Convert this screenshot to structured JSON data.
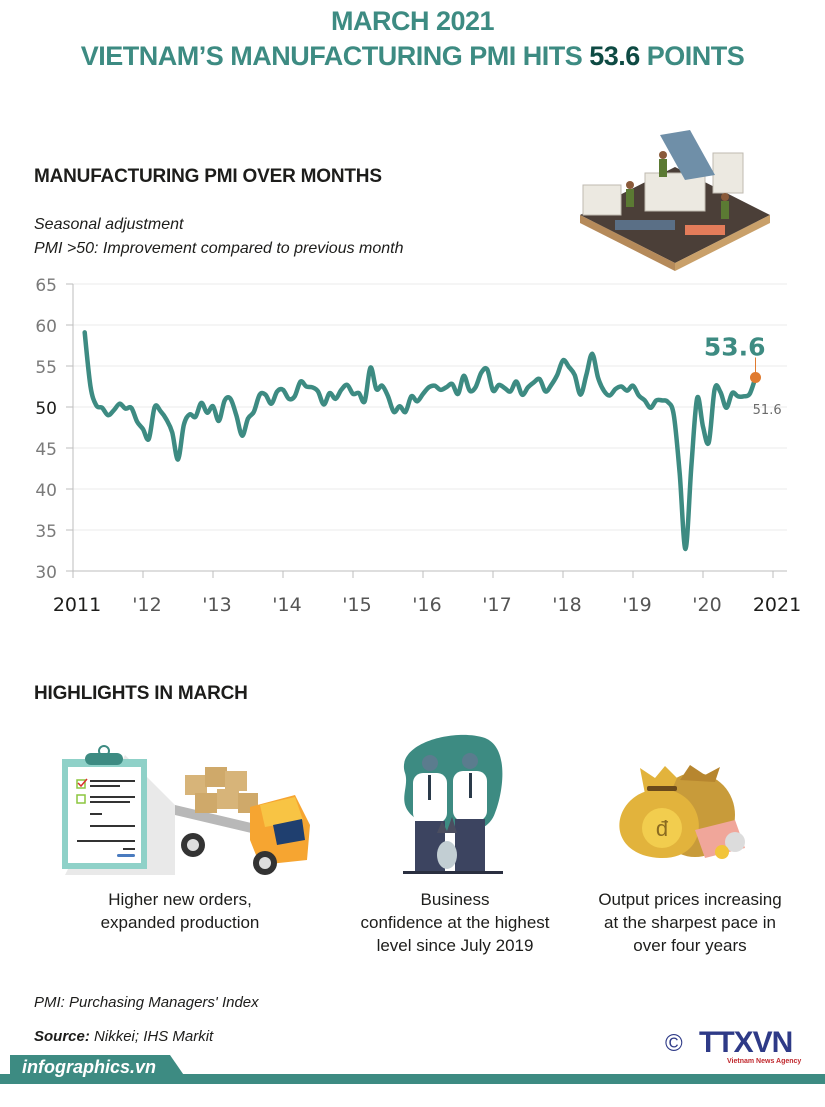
{
  "header": {
    "title_line1": "MARCH 2021",
    "title_line2_prefix": "VIETNAM’S MANUFACTURING PMI HITS ",
    "title_line2_value": "53.6",
    "title_line2_suffix": " POINTS",
    "accent_color": "#3d8b82",
    "value_color": "#0e4a43"
  },
  "chart_section": {
    "heading": "MANUFACTURING  PMI OVER MONTHS",
    "subtitle_line1": "Seasonal adjustment",
    "subtitle_line2": "PMI >50: Improvement compared to previous month",
    "illustration": "factory-isometric-illustration"
  },
  "chart_data": {
    "type": "line",
    "title": "MANUFACTURING PMI OVER MONTHS",
    "xlabel": "",
    "ylabel": "",
    "ylim": [
      30,
      65
    ],
    "yticks": [
      30,
      35,
      40,
      45,
      50,
      55,
      60,
      65
    ],
    "xticks": [
      "2011",
      "'12",
      "'13",
      "'14",
      "'15",
      "'16",
      "'17",
      "'18",
      "'19",
      "'20",
      "2021"
    ],
    "xrange": [
      "2011-01",
      "2021-03"
    ],
    "grid": true,
    "series": [
      {
        "name": "Vietnam Manufacturing PMI",
        "color": "#3d8b82",
        "start": "2011-03",
        "values": [
          59.1,
          52.5,
          50.2,
          49.9,
          49.0,
          49.6,
          50.4,
          49.8,
          49.9,
          48.2,
          47.3,
          46.1,
          50.0,
          49.5,
          48.5,
          46.9,
          43.6,
          47.8,
          49.1,
          48.8,
          50.5,
          49.3,
          50.1,
          48.3,
          50.8,
          51.0,
          49.0,
          46.5,
          48.6,
          49.4,
          51.5,
          51.5,
          50.4,
          51.9,
          52.1,
          51.0,
          51.3,
          53.1,
          52.5,
          52.4,
          51.9,
          50.3,
          51.7,
          51.0,
          52.1,
          52.7,
          51.6,
          51.7,
          50.7,
          54.8,
          52.2,
          52.6,
          51.3,
          49.4,
          50.1,
          49.4,
          51.3,
          50.7,
          51.6,
          52.4,
          52.6,
          52.1,
          52.4,
          52.8,
          51.6,
          53.8,
          52.0,
          52.4,
          54.2,
          54.6,
          52.0,
          52.7,
          52.3,
          51.9,
          53.1,
          51.5,
          52.4,
          53.0,
          53.4,
          51.9,
          52.7,
          53.9,
          55.7,
          54.9,
          53.9,
          51.5,
          53.9,
          56.5,
          53.6,
          52.0,
          51.4,
          52.2,
          52.5,
          52.0,
          52.6,
          51.4,
          50.8,
          49.9,
          50.8,
          50.8,
          50.6,
          49.0,
          41.9,
          32.7,
          42.7,
          51.1,
          47.6,
          45.7,
          52.2,
          51.8,
          49.9,
          51.7,
          51.3,
          51.3,
          51.6,
          53.6
        ]
      }
    ],
    "annotations": [
      {
        "label": "53.6",
        "point": "2021-03",
        "value": 53.6,
        "style": "highlight",
        "marker_color": "#e07b30"
      },
      {
        "label": "51.6",
        "point": "2021-02",
        "value": 51.6,
        "style": "small"
      }
    ]
  },
  "highlights": {
    "heading": "HIGHLIGHTS IN MARCH",
    "items": [
      {
        "icon": "clipboard-truck-icon",
        "line1": "Higher new orders,",
        "line2": "expanded production",
        "line3": ""
      },
      {
        "icon": "handshake-icon",
        "line1": "Business",
        "line2": "confidence at the highest",
        "line3": "level since July 2019"
      },
      {
        "icon": "money-bags-icon",
        "line1": "Output prices increasing",
        "line2": "at the sharpest pace in",
        "line3": "over four years"
      }
    ]
  },
  "footer": {
    "note": "PMI: Purchasing Managers' Index",
    "source_label": "Source:",
    "source_value": " Nikkei; IHS Markit",
    "site": "infographics.vn",
    "copyright_symbol": "©",
    "agency_logo": "TTXVN",
    "agency_name": "Vietnam News Agency"
  }
}
